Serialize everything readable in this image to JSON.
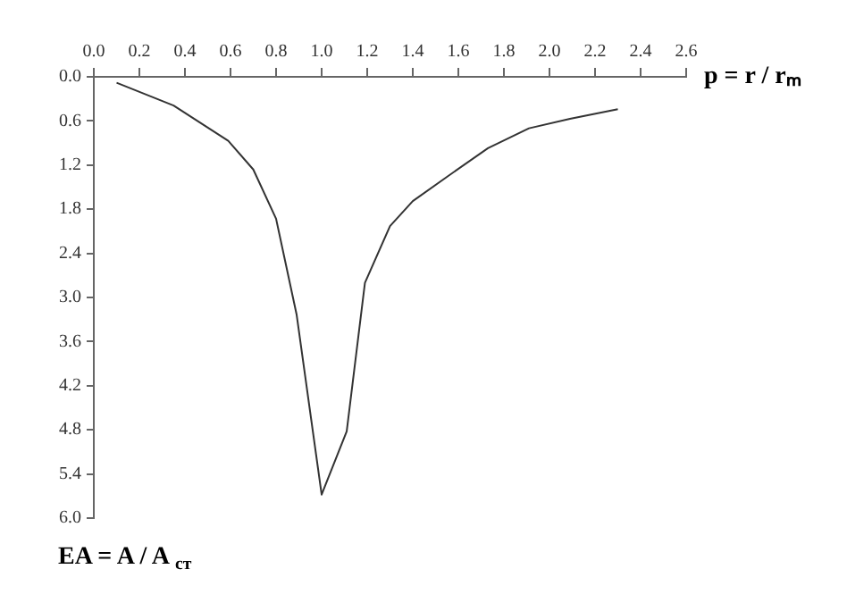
{
  "chart_data": {
    "type": "line",
    "xlabel": "p = r / rₘ",
    "ylabel": "EA = A / A$_{ст}$",
    "series": [
      {
        "color": "#333333",
        "x": [
          0.1,
          0.35,
          0.59,
          0.7,
          0.8,
          0.89,
          1.0,
          1.11,
          1.19,
          1.3,
          1.4,
          1.55,
          1.73,
          1.91,
          2.09,
          2.3
        ],
        "values": [
          0.08,
          0.39,
          0.87,
          1.26,
          1.93,
          3.23,
          5.68,
          4.82,
          2.8,
          2.03,
          1.69,
          1.36,
          0.97,
          0.7,
          0.57,
          0.44
        ]
      }
    ],
    "xlim": [
      0,
      2.6
    ],
    "xticks": [
      {
        "value": 0,
        "label": "0.0"
      },
      {
        "value": 0.2,
        "label": "0.2"
      },
      {
        "value": 0.4,
        "label": "0.4"
      },
      {
        "value": 0.6,
        "label": "0.6"
      },
      {
        "value": 0.8,
        "label": "0.8"
      },
      {
        "value": 1.0,
        "label": "1.0"
      },
      {
        "value": 1.2,
        "label": "1.2"
      },
      {
        "value": 1.4,
        "label": "1.4"
      },
      {
        "value": 1.6,
        "label": "1.6"
      },
      {
        "value": 1.8,
        "label": "1.8"
      },
      {
        "value": 2.0,
        "label": "2.0"
      },
      {
        "value": 2.2,
        "label": "2.2"
      },
      {
        "value": 2.4,
        "label": "2.4"
      },
      {
        "value": 2.6,
        "label": "2.6"
      }
    ],
    "ylim": [
      6.0,
      0
    ],
    "yticks": [
      {
        "value": 0,
        "label": "0.0"
      },
      {
        "value": 0.6,
        "label": "0.6"
      },
      {
        "value": 1.2,
        "label": "1.2"
      },
      {
        "value": 1.8,
        "label": "1.8"
      },
      {
        "value": 2.4,
        "label": "2.4"
      },
      {
        "value": 3.0,
        "label": "3.0"
      },
      {
        "value": 3.6,
        "label": "3.6"
      },
      {
        "value": 4.2,
        "label": "4.2"
      },
      {
        "value": 4.8,
        "label": "4.8"
      },
      {
        "value": 5.4,
        "label": "5.4"
      },
      {
        "value": 6.0,
        "label": "6.0"
      }
    ],
    "grid": false,
    "legend": false,
    "marker": "none",
    "line_style": "solid"
  }
}
